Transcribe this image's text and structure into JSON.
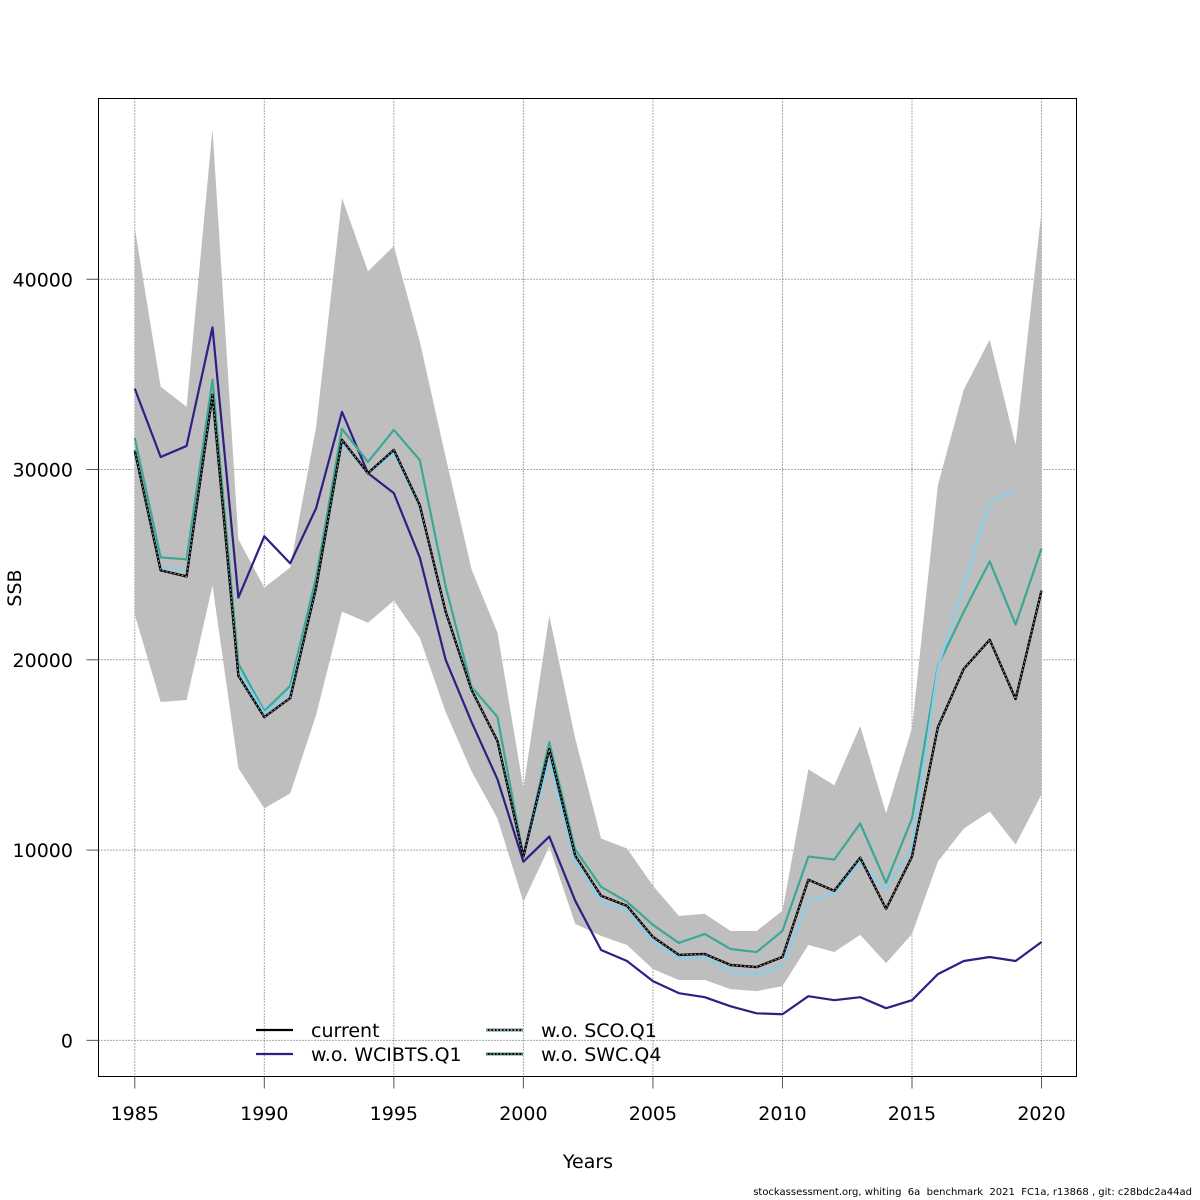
{
  "chart_data": {
    "type": "line",
    "title": "",
    "xlabel": "Years",
    "ylabel": "SSB",
    "xlim": [
      1983.6,
      2021.35
    ],
    "ylim": [
      -1900,
      49500
    ],
    "x_ticks": [
      1985,
      1990,
      1995,
      2000,
      2005,
      2010,
      2015,
      2020
    ],
    "y_ticks": [
      0,
      10000,
      20000,
      30000,
      40000
    ],
    "grid": true,
    "legend_position": "bottom-center",
    "x": [
      1985,
      1986,
      1987,
      1988,
      1989,
      1990,
      1991,
      1992,
      1993,
      1994,
      1995,
      1996,
      1997,
      1998,
      1999,
      2000,
      2001,
      2002,
      2003,
      2004,
      2005,
      2006,
      2007,
      2008,
      2009,
      2010,
      2011,
      2012,
      2013,
      2014,
      2015,
      2016,
      2017,
      2018,
      2019,
      2020
    ],
    "confidence_band": {
      "name": "current 95% CI",
      "color": "#bebebe",
      "upper": [
        42700,
        34350,
        33300,
        47900,
        26330,
        23800,
        24850,
        32240,
        44270,
        40420,
        41740,
        36730,
        30660,
        24750,
        21420,
        13250,
        22320,
        15880,
        10610,
        10080,
        8130,
        6540,
        6650,
        5750,
        5750,
        6810,
        14250,
        13400,
        16520,
        11930,
        16410,
        29180,
        34200,
        36830,
        31290,
        43590
      ],
      "lower": [
        22370,
        17780,
        17890,
        23900,
        14300,
        12190,
        12980,
        17100,
        22530,
        21950,
        23110,
        21160,
        17260,
        14140,
        11660,
        7280,
        10180,
        6120,
        5490,
        5010,
        3750,
        3170,
        3170,
        2690,
        2590,
        2850,
        5010,
        4640,
        5540,
        4060,
        5590,
        9390,
        11130,
        12030,
        10290,
        12930
      ]
    },
    "series": [
      {
        "name": "current",
        "color": "#000000",
        "style": "solid",
        "values": [
          31000,
          24700,
          24380,
          33930,
          19160,
          16990,
          17990,
          23800,
          31560,
          29810,
          31030,
          28130,
          22530,
          18420,
          15730,
          9660,
          15300,
          9710,
          7600,
          7070,
          5440,
          4490,
          4540,
          3960,
          3850,
          4380,
          8440,
          7860,
          9600,
          6910,
          9660,
          16460,
          19530,
          21050,
          17940,
          23640
        ]
      },
      {
        "name": "w.o. WCIBTS.Q1",
        "color": "#2e1f85",
        "style": "solid",
        "values": [
          34250,
          30660,
          31240,
          37470,
          23270,
          26490,
          25070,
          27970,
          33030,
          29810,
          28760,
          25380,
          20000,
          16730,
          13720,
          9390,
          10710,
          7340,
          4750,
          4170,
          3110,
          2480,
          2270,
          1790,
          1420,
          1370,
          2320,
          2110,
          2270,
          1690,
          2110,
          3480,
          4170,
          4380,
          4170,
          5170
        ]
      },
      {
        "name": "w.o. SCO.Q1",
        "color": "#87ceeb",
        "style": "dotted",
        "values": [
          30870,
          24860,
          24700,
          33720,
          19470,
          17200,
          18310,
          23800,
          31400,
          29810,
          30820,
          28020,
          22430,
          18520,
          15620,
          9660,
          14720,
          9340,
          7280,
          6810,
          5120,
          4330,
          4330,
          3640,
          3480,
          3900,
          7330,
          7700,
          9390,
          7920,
          10180,
          19580,
          23900,
          28280,
          28920,
          null
        ]
      },
      {
        "name": "w.o. SWC.Q4",
        "color": "#3aa895",
        "style": "dotted",
        "values": [
          31660,
          25380,
          25280,
          34720,
          19790,
          17310,
          18630,
          24330,
          32140,
          30400,
          32080,
          30500,
          23850,
          18580,
          16990,
          9660,
          15670,
          10030,
          8070,
          7280,
          6070,
          5120,
          5590,
          4800,
          4640,
          5750,
          9660,
          9500,
          11400,
          8280,
          11660,
          19680,
          22530,
          25170,
          21850,
          25860
        ]
      }
    ]
  },
  "footer": "stockassessment.org, whiting  6a  benchmark  2021  FC1a, r13868 , git: c28bdc2a44ad"
}
